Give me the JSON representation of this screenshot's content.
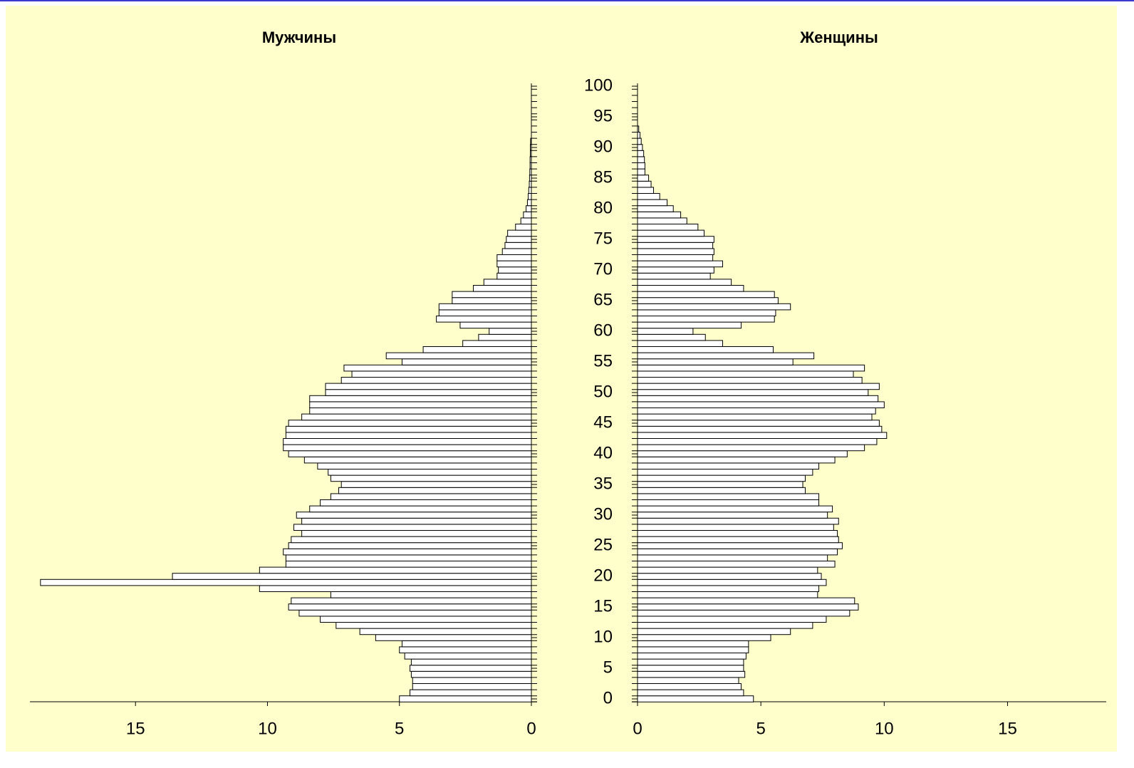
{
  "chart_data": [
    {
      "type": "bar",
      "orientation": "horizontal",
      "reversed": true,
      "title": "Мужчины",
      "color": "#ffffff",
      "xlim": [
        0,
        19
      ],
      "xticks": [
        0,
        5,
        10,
        15
      ],
      "ylim": [
        0,
        100
      ],
      "yticks": [
        0,
        5,
        10,
        15,
        20,
        25,
        30,
        35,
        40,
        45,
        50,
        55,
        60,
        65,
        70,
        75,
        80,
        85,
        90,
        95,
        100
      ],
      "y": [
        0,
        1,
        2,
        3,
        4,
        5,
        6,
        7,
        8,
        9,
        10,
        11,
        12,
        13,
        14,
        15,
        16,
        17,
        18,
        19,
        20,
        21,
        22,
        23,
        24,
        25,
        26,
        27,
        28,
        29,
        30,
        31,
        32,
        33,
        34,
        35,
        36,
        37,
        38,
        39,
        40,
        41,
        42,
        43,
        44,
        45,
        46,
        47,
        48,
        49,
        50,
        51,
        52,
        53,
        54,
        55,
        56,
        57,
        58,
        59,
        60,
        61,
        62,
        63,
        64,
        65,
        66,
        67,
        68,
        69,
        70,
        71,
        72,
        73,
        74,
        75,
        76,
        77,
        78,
        79,
        80,
        81,
        82,
        83,
        84,
        85,
        86,
        87,
        88,
        89,
        90,
        91,
        92,
        93,
        94,
        95,
        96,
        97,
        98,
        99,
        100
      ],
      "values": [
        5.0,
        4.6,
        4.5,
        4.5,
        4.55,
        4.6,
        4.55,
        4.8,
        5.0,
        4.9,
        5.9,
        6.5,
        7.4,
        8.0,
        8.8,
        9.2,
        9.1,
        7.6,
        10.3,
        18.6,
        13.6,
        10.3,
        9.3,
        9.3,
        9.4,
        9.2,
        9.1,
        8.7,
        9.0,
        8.7,
        8.9,
        8.4,
        8.0,
        7.6,
        7.3,
        7.2,
        7.6,
        7.7,
        8.1,
        8.6,
        9.2,
        9.4,
        9.4,
        9.3,
        9.3,
        9.2,
        8.7,
        8.4,
        8.4,
        8.4,
        7.8,
        7.8,
        7.2,
        6.8,
        7.1,
        4.9,
        5.5,
        4.1,
        2.6,
        2.0,
        1.6,
        2.7,
        3.6,
        3.5,
        3.5,
        3.0,
        3.0,
        2.2,
        1.8,
        1.3,
        1.25,
        1.3,
        1.3,
        1.1,
        1.0,
        0.95,
        0.9,
        0.6,
        0.4,
        0.3,
        0.2,
        0.15,
        0.12,
        0.1,
        0.08,
        0.07,
        0.06,
        0.05,
        0.05,
        0.04,
        0.04,
        0.03,
        0,
        0,
        0,
        0,
        0,
        0,
        0,
        0,
        0
      ]
    },
    {
      "type": "bar",
      "orientation": "horizontal",
      "reversed": false,
      "title": "Женщины",
      "color": "#ffffff",
      "xlim": [
        0,
        19
      ],
      "xticks": [
        0,
        5,
        10,
        15
      ],
      "ylim": [
        0,
        100
      ],
      "yticks": [
        0,
        5,
        10,
        15,
        20,
        25,
        30,
        35,
        40,
        45,
        50,
        55,
        60,
        65,
        70,
        75,
        80,
        85,
        90,
        95,
        100
      ],
      "y": [
        0,
        1,
        2,
        3,
        4,
        5,
        6,
        7,
        8,
        9,
        10,
        11,
        12,
        13,
        14,
        15,
        16,
        17,
        18,
        19,
        20,
        21,
        22,
        23,
        24,
        25,
        26,
        27,
        28,
        29,
        30,
        31,
        32,
        33,
        34,
        35,
        36,
        37,
        38,
        39,
        40,
        41,
        42,
        43,
        44,
        45,
        46,
        47,
        48,
        49,
        50,
        51,
        52,
        53,
        54,
        55,
        56,
        57,
        58,
        59,
        60,
        61,
        62,
        63,
        64,
        65,
        66,
        67,
        68,
        69,
        70,
        71,
        72,
        73,
        74,
        75,
        76,
        77,
        78,
        79,
        80,
        81,
        82,
        83,
        84,
        85,
        86,
        87,
        88,
        89,
        90,
        91,
        92,
        93,
        94,
        95,
        96,
        97,
        98,
        99,
        100
      ],
      "values": [
        4.7,
        4.3,
        4.2,
        4.1,
        4.35,
        4.3,
        4.3,
        4.4,
        4.5,
        4.5,
        5.4,
        6.2,
        7.1,
        7.65,
        8.6,
        8.95,
        8.8,
        7.3,
        7.35,
        7.65,
        7.45,
        7.3,
        8.0,
        7.7,
        8.1,
        8.3,
        8.15,
        8.1,
        7.95,
        8.15,
        7.7,
        7.9,
        7.35,
        7.35,
        6.8,
        6.7,
        6.8,
        7.1,
        7.35,
        8.0,
        8.5,
        9.2,
        9.7,
        10.1,
        9.9,
        9.8,
        9.5,
        9.65,
        10.0,
        9.75,
        9.35,
        9.8,
        9.1,
        8.75,
        9.2,
        6.3,
        7.15,
        5.5,
        3.45,
        2.75,
        2.25,
        4.2,
        5.55,
        5.6,
        6.2,
        5.7,
        5.55,
        4.3,
        3.8,
        2.95,
        3.1,
        3.45,
        3.05,
        3.1,
        3.05,
        3.1,
        2.7,
        2.45,
        2.0,
        1.75,
        1.45,
        1.2,
        0.9,
        0.65,
        0.55,
        0.45,
        0.3,
        0.3,
        0.28,
        0.25,
        0.2,
        0.15,
        0.1,
        0.05,
        0,
        0,
        0,
        0,
        0,
        0,
        0
      ]
    }
  ]
}
